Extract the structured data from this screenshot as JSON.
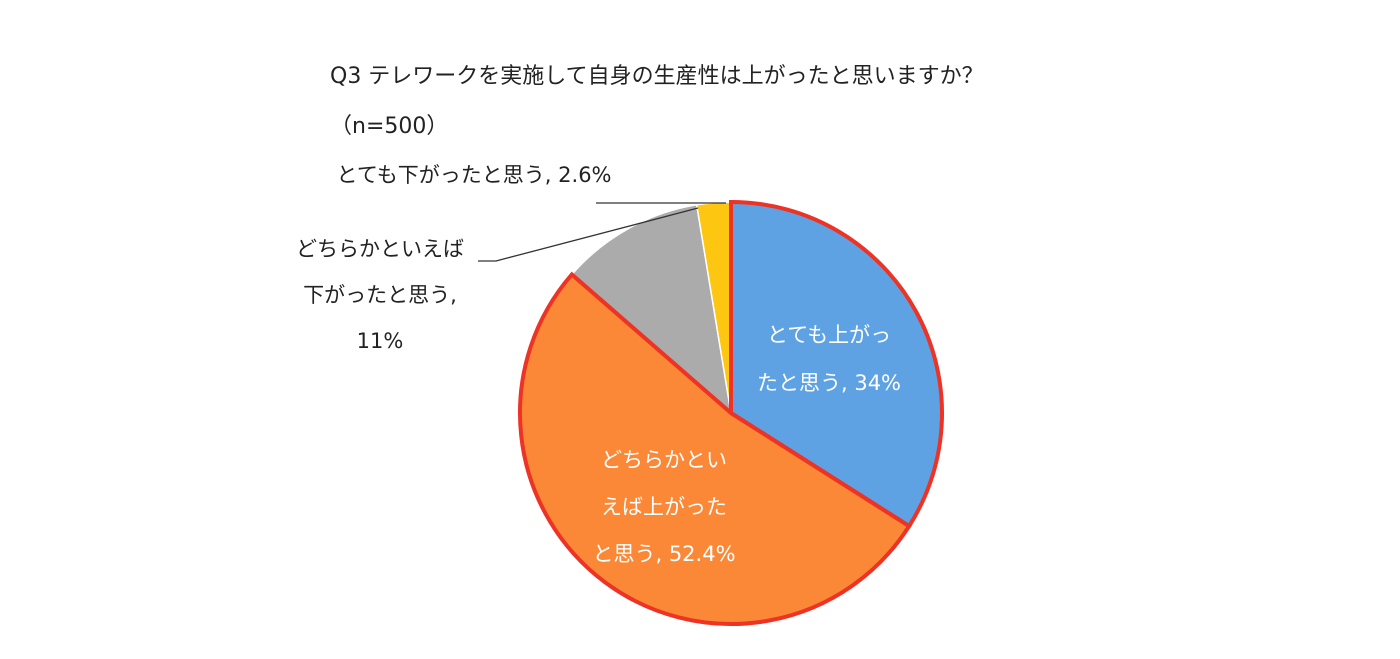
{
  "chart_data": {
    "type": "pie",
    "title": "Q3 テレワークを実施して自身の生産性は上がったと思いますか？",
    "subtitle": "（n=500）",
    "slices": [
      {
        "label_lines": [
          "とても上がっ",
          "たと思う, 34%"
        ],
        "value": 34,
        "color": "#5fa2e3",
        "highlight": true,
        "label_inside": true
      },
      {
        "label_lines": [
          "どちらかとい",
          "えば上がった",
          "と思う, 52.4%"
        ],
        "value": 52.4,
        "color": "#fb8837",
        "highlight": true,
        "label_inside": true
      },
      {
        "label_lines": [
          "どちらかといえば",
          "下がったと思う,",
          "11%"
        ],
        "value": 11,
        "color": "#ababab",
        "highlight": false,
        "label_inside": false
      },
      {
        "label_lines": [
          "とても下がったと思う, 2.6%"
        ],
        "value": 2.6,
        "color": "#fdc610",
        "highlight": false,
        "label_inside": false
      }
    ],
    "remainder_color": "#f2c48a",
    "highlight_color": "#ee3224",
    "label_color_inside": "#ffffff",
    "label_color_outside": "#222222",
    "leader_color": "#333333"
  }
}
